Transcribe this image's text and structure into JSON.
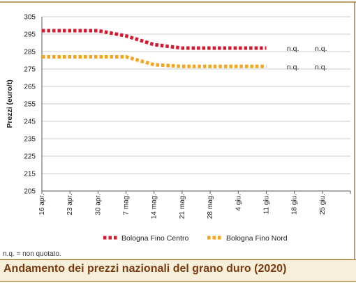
{
  "colors": {
    "frame": "#b07a3c",
    "background_band": "#f6efd9",
    "title_text": "#7a3b12",
    "series_centro": "#d7192f",
    "series_nord": "#f5a51c"
  },
  "footnote": "n.q. = non quotato.",
  "bottom_title": "Andamento dei prezzi nazionali del grano duro (2020)",
  "chart_data": {
    "type": "line",
    "ylabel": "Prezzi (euro/t)",
    "xlabel": "",
    "ylim": [
      205,
      305
    ],
    "y_ticks": [
      205,
      215,
      225,
      235,
      245,
      255,
      265,
      275,
      285,
      295,
      305
    ],
    "categories": [
      "16 apr.",
      "23 apr.",
      "30 apr.",
      "7 mag.",
      "14 mag.",
      "21 mag.",
      "28 mag.",
      "4 giu.",
      "11 giu.",
      "18 giu.",
      "25 giu."
    ],
    "grid": true,
    "legend_position": "bottom",
    "series": [
      {
        "name": "Bologna Fino Centro",
        "color": "#d7192f",
        "values": [
          297,
          297,
          297,
          294,
          289,
          287,
          287,
          287,
          287,
          null,
          null
        ]
      },
      {
        "name": "Bologna Fino Nord",
        "color": "#f5a51c",
        "values": [
          282,
          282,
          282,
          282,
          277.5,
          276.5,
          276.5,
          276.5,
          276.5,
          null,
          null
        ]
      }
    ],
    "annotations": [
      {
        "series": 0,
        "category": "18 giu.",
        "text": "n.q."
      },
      {
        "series": 0,
        "category": "25 giu.",
        "text": "n.q."
      },
      {
        "series": 1,
        "category": "18 giu.",
        "text": "n.q."
      },
      {
        "series": 1,
        "category": "25 giu.",
        "text": "n.q."
      }
    ]
  }
}
